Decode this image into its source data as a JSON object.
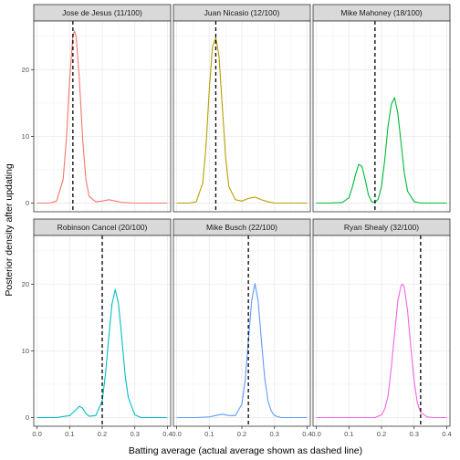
{
  "chart_data": {
    "type": "line",
    "xlabel": "Batting average (actual average shown as dashed line)",
    "ylabel": "Posterior density after updating",
    "xlim": [
      -0.01,
      0.41
    ],
    "ylim": [
      -1.3,
      27.3
    ],
    "x_ticks": [
      0.0,
      0.1,
      0.2,
      0.3,
      0.4
    ],
    "x_tick_labels": [
      "0.0",
      "0.1",
      "0.2",
      "0.3",
      "0.4"
    ],
    "y_ticks": [
      0,
      10,
      20
    ],
    "y_tick_labels": [
      "0",
      "10",
      "20"
    ],
    "grid": true,
    "facets": [
      {
        "label": "Jose de Jesus (11/100)",
        "color": "#F8766D",
        "actual_average": 0.11,
        "x": [
          0.0,
          0.02,
          0.04,
          0.06,
          0.08,
          0.09,
          0.1,
          0.11,
          0.115,
          0.12,
          0.13,
          0.14,
          0.15,
          0.16,
          0.18,
          0.2,
          0.22,
          0.24,
          0.26,
          0.3,
          0.35,
          0.4
        ],
        "y": [
          0,
          0,
          0,
          0.3,
          3.5,
          9.5,
          18.5,
          25.0,
          25.8,
          25.0,
          18.5,
          9.5,
          3.5,
          1.0,
          0.2,
          0.3,
          0.5,
          0.3,
          0.1,
          0,
          0,
          0
        ]
      },
      {
        "label": "Juan Nicasio (12/100)",
        "color": "#B79F00",
        "actual_average": 0.12,
        "x": [
          0.0,
          0.02,
          0.04,
          0.06,
          0.08,
          0.09,
          0.1,
          0.11,
          0.12,
          0.13,
          0.14,
          0.15,
          0.16,
          0.18,
          0.2,
          0.22,
          0.24,
          0.26,
          0.28,
          0.3,
          0.35,
          0.4
        ],
        "y": [
          0,
          0,
          0,
          0.2,
          3.0,
          8.5,
          17.0,
          23.5,
          24.8,
          22.0,
          14.5,
          7.0,
          2.5,
          0.5,
          0.3,
          0.7,
          0.9,
          0.5,
          0.2,
          0,
          0,
          0
        ]
      },
      {
        "label": "Mike Mahoney (18/100)",
        "color": "#00BA38",
        "actual_average": 0.18,
        "x": [
          0.0,
          0.04,
          0.08,
          0.1,
          0.11,
          0.12,
          0.13,
          0.14,
          0.15,
          0.16,
          0.17,
          0.18,
          0.19,
          0.2,
          0.21,
          0.22,
          0.23,
          0.24,
          0.25,
          0.26,
          0.27,
          0.28,
          0.3,
          0.32,
          0.36,
          0.4
        ],
        "y": [
          0,
          0,
          0.1,
          0.8,
          2.3,
          4.2,
          5.8,
          5.5,
          3.5,
          1.2,
          0.2,
          0.1,
          0.6,
          2.5,
          6.5,
          11.5,
          14.8,
          15.8,
          13.5,
          9.0,
          4.5,
          1.8,
          0.2,
          0,
          0,
          0
        ]
      },
      {
        "label": "Robinson Cancel (20/100)",
        "color": "#00BFC4",
        "actual_average": 0.2,
        "x": [
          0.0,
          0.06,
          0.1,
          0.12,
          0.13,
          0.14,
          0.15,
          0.16,
          0.18,
          0.2,
          0.21,
          0.22,
          0.23,
          0.24,
          0.25,
          0.26,
          0.27,
          0.28,
          0.3,
          0.32,
          0.36,
          0.4
        ],
        "y": [
          0,
          0,
          0.3,
          1.2,
          1.7,
          1.4,
          0.6,
          0.2,
          0.3,
          2.5,
          6.5,
          12.0,
          17.0,
          19.2,
          17.0,
          12.0,
          6.5,
          3.0,
          0.4,
          0,
          0,
          0
        ]
      },
      {
        "label": "Mike Busch (22/100)",
        "color": "#619CFF",
        "actual_average": 0.22,
        "x": [
          0.0,
          0.06,
          0.1,
          0.12,
          0.14,
          0.16,
          0.18,
          0.2,
          0.21,
          0.22,
          0.23,
          0.24,
          0.25,
          0.26,
          0.27,
          0.28,
          0.29,
          0.3,
          0.32,
          0.36,
          0.4
        ],
        "y": [
          0,
          0,
          0.1,
          0.3,
          0.5,
          0.3,
          0.3,
          2.0,
          5.5,
          11.5,
          17.5,
          20.1,
          17.5,
          11.5,
          6.0,
          2.5,
          1.0,
          0.3,
          0,
          0,
          0
        ]
      },
      {
        "label": "Ryan Shealy (32/100)",
        "color": "#F564E3",
        "actual_average": 0.32,
        "x": [
          0.0,
          0.1,
          0.18,
          0.2,
          0.21,
          0.22,
          0.23,
          0.24,
          0.25,
          0.26,
          0.265,
          0.27,
          0.28,
          0.29,
          0.3,
          0.31,
          0.32,
          0.34,
          0.36,
          0.4
        ],
        "y": [
          0,
          0,
          0,
          0.4,
          1.3,
          3.2,
          7.5,
          12.5,
          17.5,
          19.8,
          20.0,
          19.5,
          16.0,
          10.5,
          5.5,
          2.2,
          0.8,
          0.1,
          0,
          0
        ]
      }
    ]
  }
}
